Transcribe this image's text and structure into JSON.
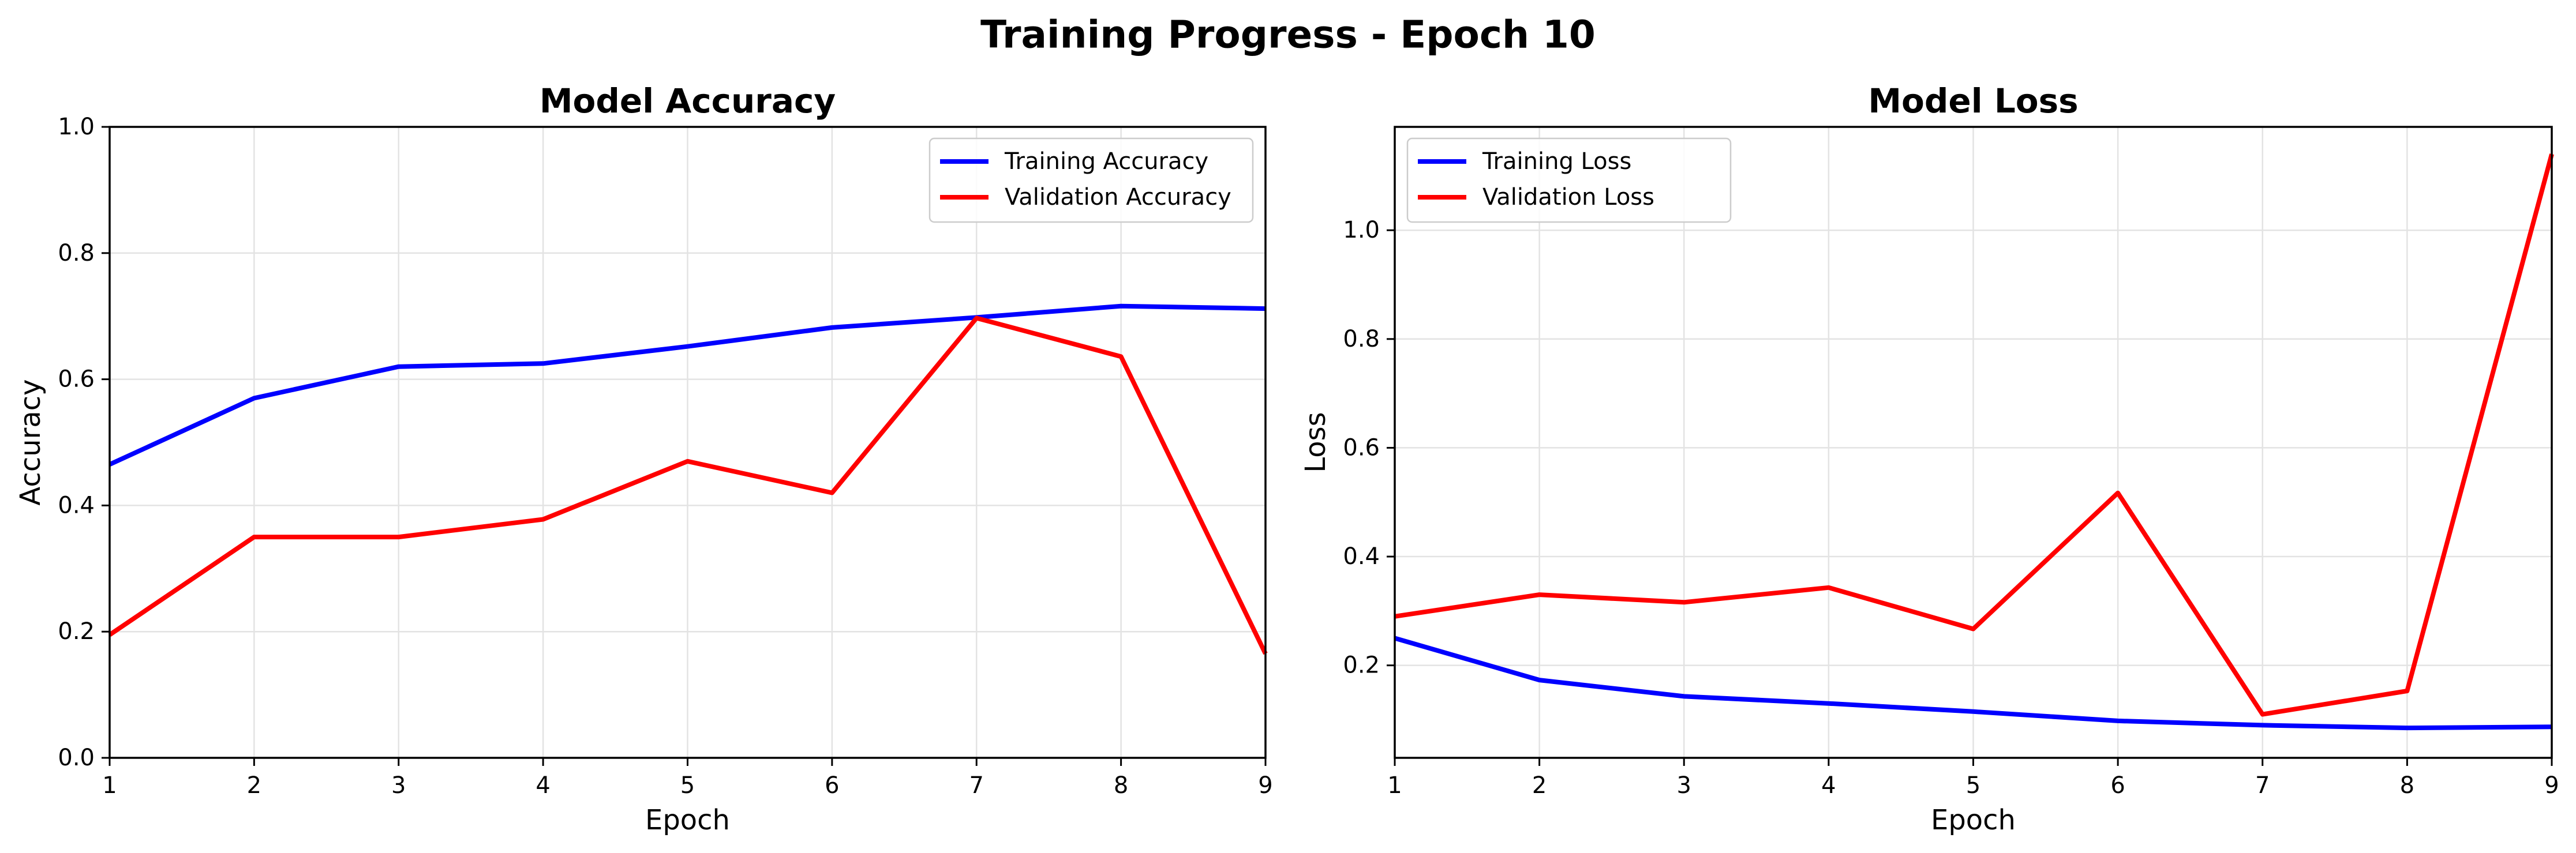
{
  "figure": {
    "suptitle": "Training Progress - Epoch 10"
  },
  "chart_data": [
    {
      "type": "line",
      "title": "Model Accuracy",
      "xlabel": "Epoch",
      "ylabel": "Accuracy",
      "x": [
        1,
        2,
        3,
        4,
        5,
        6,
        7,
        8,
        9
      ],
      "xlim": [
        1,
        9
      ],
      "ylim": [
        0.0,
        1.0
      ],
      "xticks": [
        "1",
        "2",
        "3",
        "4",
        "5",
        "6",
        "7",
        "8",
        "9"
      ],
      "yticks": [
        "0.0",
        "0.2",
        "0.4",
        "0.6",
        "0.8",
        "1.0"
      ],
      "grid": true,
      "legend": "upper right",
      "series": [
        {
          "name": "Training Accuracy",
          "color": "#0000ff",
          "values": [
            0.465,
            0.57,
            0.62,
            0.625,
            0.652,
            0.682,
            0.698,
            0.716,
            0.712
          ]
        },
        {
          "name": "Validation Accuracy",
          "color": "#ff0000",
          "values": [
            0.195,
            0.35,
            0.35,
            0.378,
            0.47,
            0.42,
            0.697,
            0.636,
            0.165
          ]
        }
      ]
    },
    {
      "type": "line",
      "title": "Model Loss",
      "xlabel": "Epoch",
      "ylabel": "Loss",
      "x": [
        1,
        2,
        3,
        4,
        5,
        6,
        7,
        8,
        9
      ],
      "xlim": [
        1,
        9
      ],
      "ylim": [
        0.03,
        1.19
      ],
      "xticks": [
        "1",
        "2",
        "3",
        "4",
        "5",
        "6",
        "7",
        "8",
        "9"
      ],
      "yticks": [
        "0.2",
        "0.4",
        "0.6",
        "0.8",
        "1.0"
      ],
      "grid": true,
      "legend": "upper left",
      "series": [
        {
          "name": "Training Loss",
          "color": "#0000ff",
          "values": [
            0.25,
            0.173,
            0.143,
            0.13,
            0.115,
            0.098,
            0.09,
            0.085,
            0.087
          ]
        },
        {
          "name": "Validation Loss",
          "color": "#ff0000",
          "values": [
            0.29,
            0.33,
            0.316,
            0.343,
            0.267,
            0.517,
            0.11,
            0.153,
            1.14
          ]
        }
      ]
    }
  ]
}
